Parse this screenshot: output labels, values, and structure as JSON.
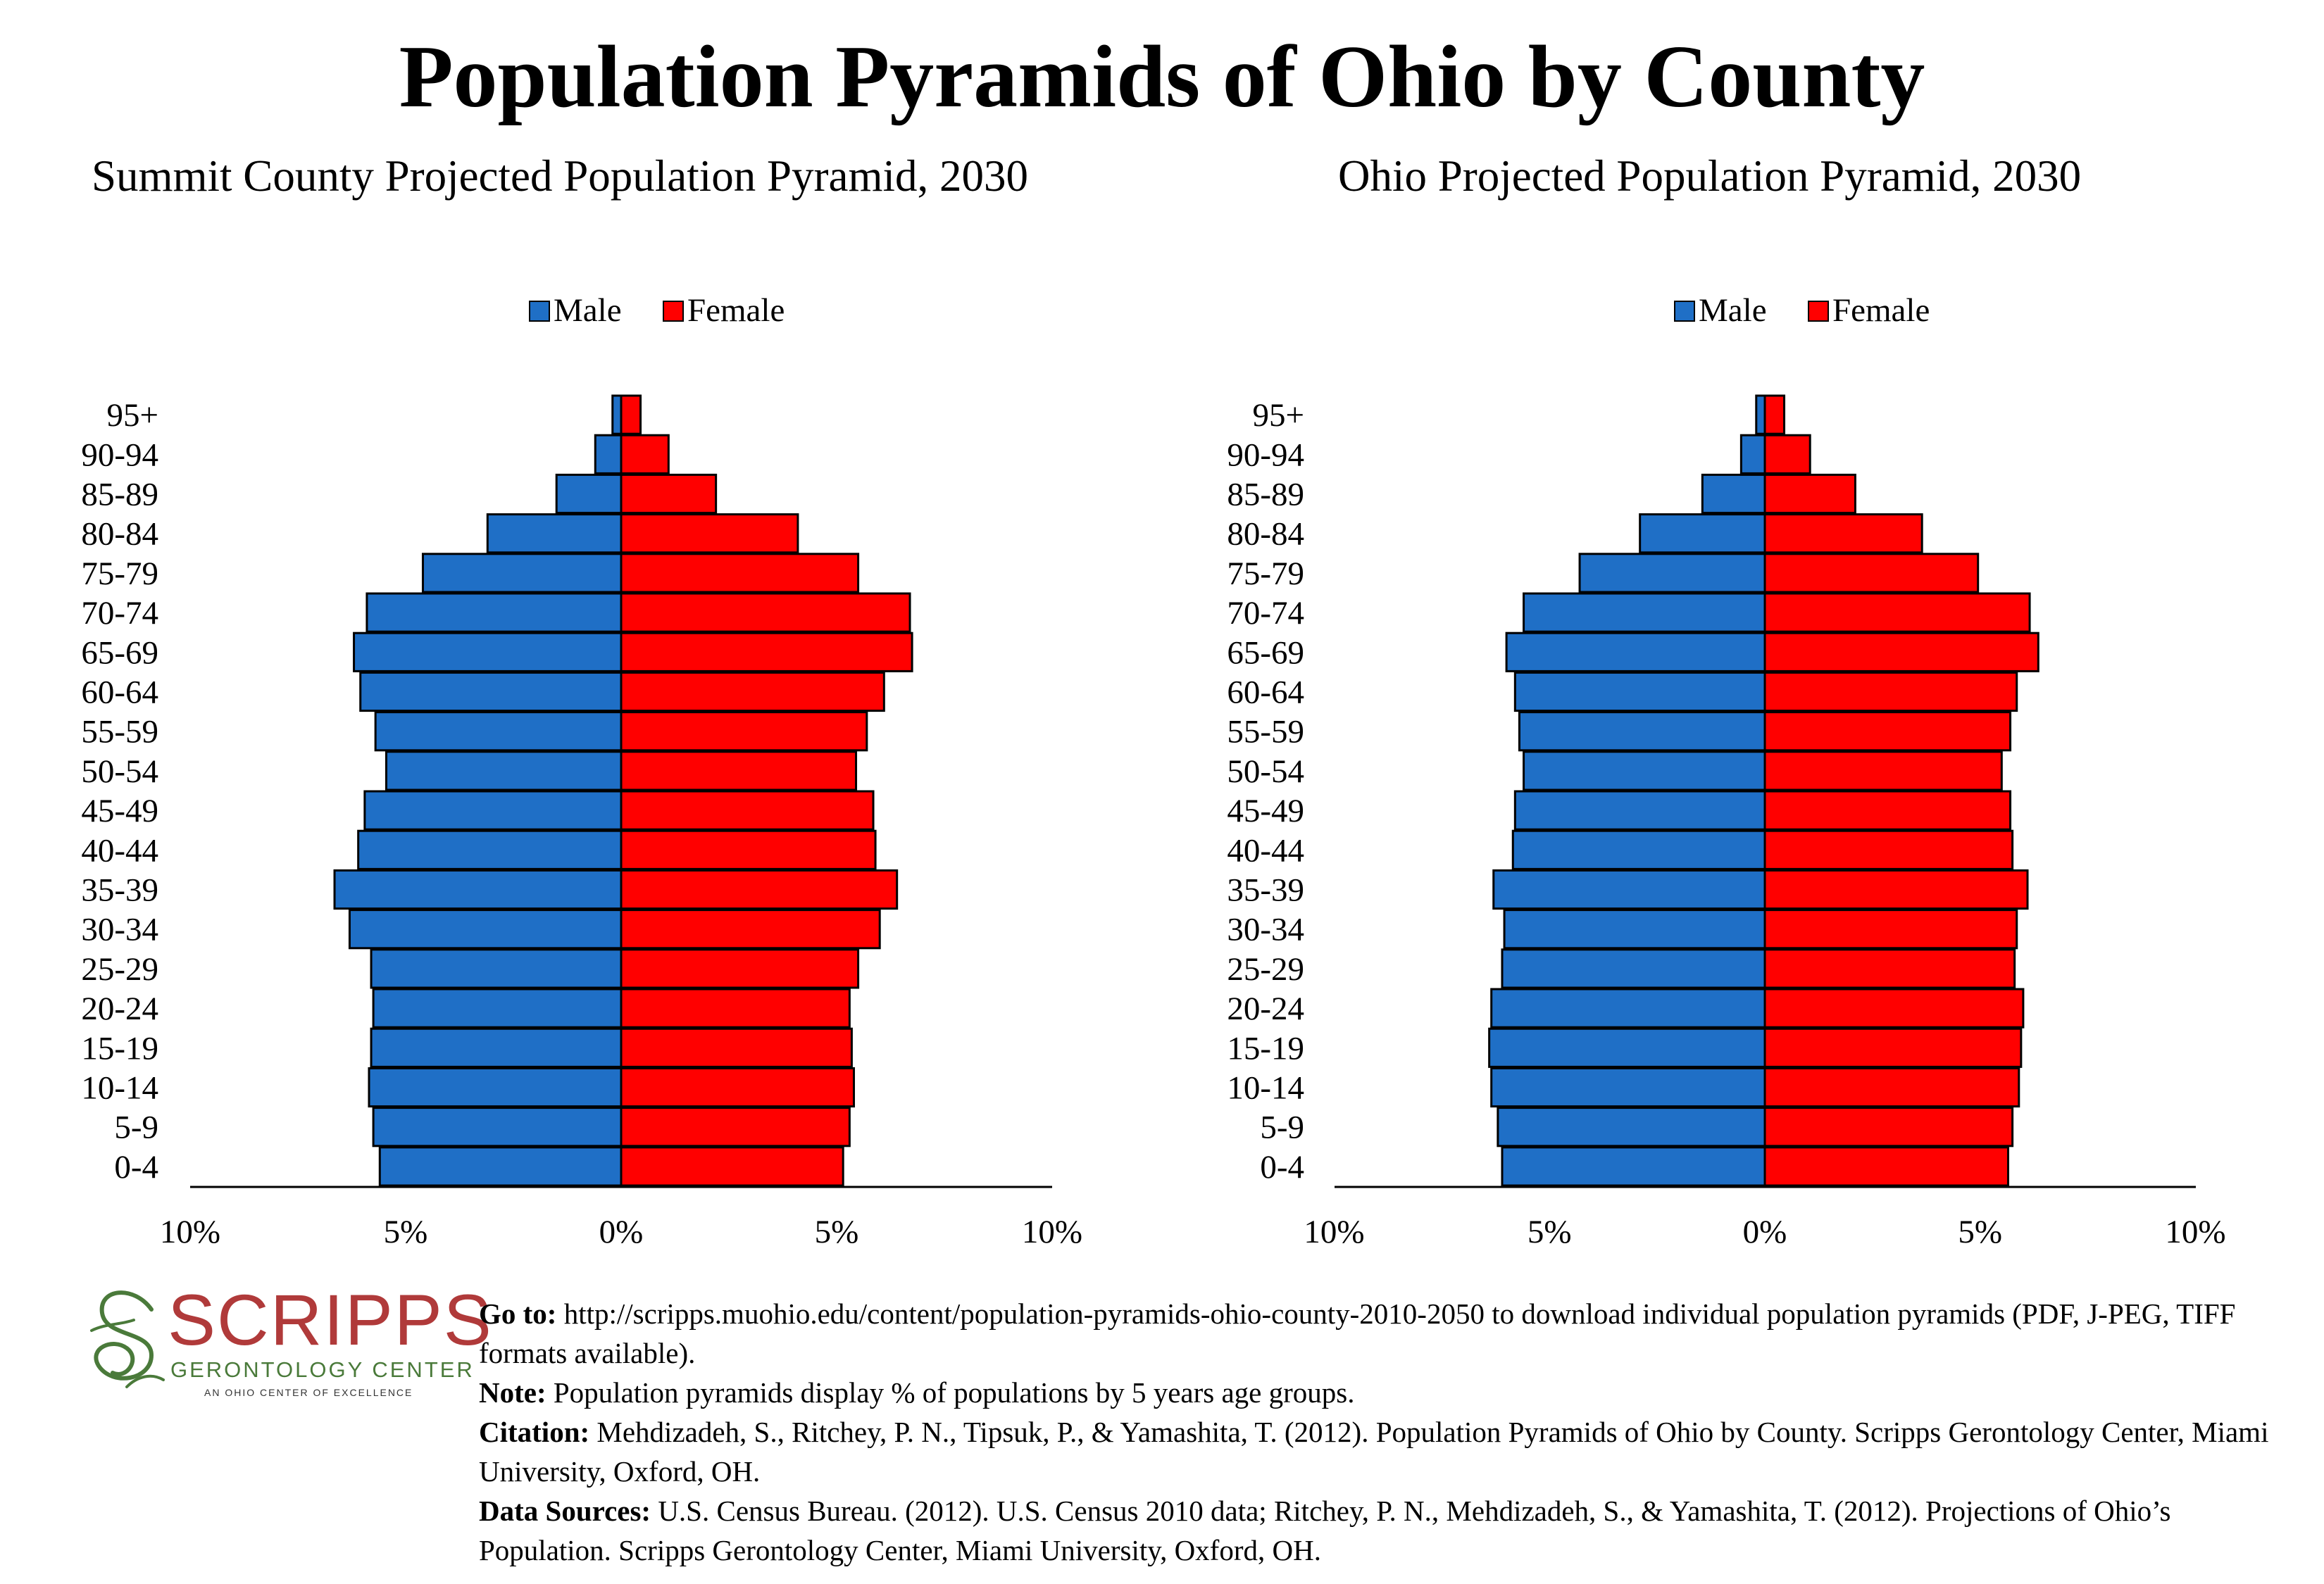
{
  "title": "Population Pyramids of Ohio by County",
  "colors": {
    "male": "#1f6fc6",
    "female": "#ff0000"
  },
  "chart_data": [
    {
      "type": "bar",
      "title": "Summit County Projected Population Pyramid, 2030",
      "legend": [
        "Male",
        "Female"
      ],
      "legend_placement": "top-center",
      "categories": [
        "95+",
        "90-94",
        "85-89",
        "80-84",
        "75-79",
        "70-74",
        "65-69",
        "60-64",
        "55-59",
        "50-54",
        "45-49",
        "40-44",
        "35-39",
        "30-34",
        "25-29",
        "20-24",
        "15-19",
        "10-14",
        "5-9",
        "0-4"
      ],
      "series": [
        {
          "name": "Male",
          "values": [
            0.2,
            0.6,
            1.5,
            3.1,
            4.6,
            5.9,
            6.2,
            6.05,
            5.7,
            5.45,
            5.95,
            6.1,
            6.65,
            6.3,
            5.8,
            5.75,
            5.8,
            5.85,
            5.75,
            5.6
          ]
        },
        {
          "name": "Female",
          "values": [
            0.45,
            1.1,
            2.2,
            4.1,
            5.5,
            6.7,
            6.75,
            6.1,
            5.7,
            5.45,
            5.85,
            5.9,
            6.4,
            6.0,
            5.5,
            5.3,
            5.35,
            5.4,
            5.3,
            5.15
          ]
        }
      ],
      "xticks": [
        "10%",
        "5%",
        "0%",
        "5%",
        "10%"
      ],
      "xlim": [
        -10,
        10
      ],
      "grid": false
    },
    {
      "type": "bar",
      "title": "Ohio Projected Population Pyramid, 2030",
      "legend": [
        "Male",
        "Female"
      ],
      "legend_placement": "top-center",
      "categories": [
        "95+",
        "90-94",
        "85-89",
        "80-84",
        "75-79",
        "70-74",
        "65-69",
        "60-64",
        "55-59",
        "50-54",
        "45-49",
        "40-44",
        "35-39",
        "30-34",
        "25-29",
        "20-24",
        "15-19",
        "10-14",
        "5-9",
        "0-4"
      ],
      "series": [
        {
          "name": "Male",
          "values": [
            0.2,
            0.55,
            1.45,
            2.9,
            4.3,
            5.6,
            6.0,
            5.8,
            5.7,
            5.6,
            5.8,
            5.85,
            6.3,
            6.05,
            6.1,
            6.35,
            6.4,
            6.35,
            6.2,
            6.1
          ]
        },
        {
          "name": "Female",
          "values": [
            0.45,
            1.05,
            2.1,
            3.65,
            4.95,
            6.15,
            6.35,
            5.85,
            5.7,
            5.5,
            5.7,
            5.75,
            6.1,
            5.85,
            5.8,
            6.0,
            5.95,
            5.9,
            5.75,
            5.65
          ]
        }
      ],
      "xticks": [
        "10%",
        "5%",
        "0%",
        "5%",
        "10%"
      ],
      "xlim": [
        -10,
        10
      ],
      "grid": false
    }
  ],
  "logo": {
    "word": "SCRIPPS",
    "subtitle": "GERONTOLOGY CENTER",
    "tagline": "AN OHIO CENTER OF EXCELLENCE",
    "colors": {
      "word": "#b03a3a",
      "mark": "#4a7a3a"
    }
  },
  "notes": {
    "goto_label": "Go to:",
    "goto_text": " http://scripps.muohio.edu/content/population-pyramids-ohio-county-2010-2050 to download individual population pyramids (PDF, J-PEG, TIFF formats available).",
    "note_label": "Note:",
    "note_text": " Population pyramids display % of populations by 5 years age groups.",
    "citation_label": "Citation:",
    "citation_text": " Mehdizadeh, S., Ritchey, P. N., Tipsuk, P., & Yamashita, T. (2012). Population Pyramids of Ohio by County. Scripps Gerontology Center, Miami University, Oxford, OH.",
    "sources_label": "Data Sources:",
    "sources_text": " U.S. Census Bureau. (2012). U.S. Census 2010 data; Ritchey, P. N., Mehdizadeh, S., & Yamashita, T. (2012). Projections of Ohio’s Population. Scripps Gerontology Center, Miami University, Oxford, OH."
  }
}
